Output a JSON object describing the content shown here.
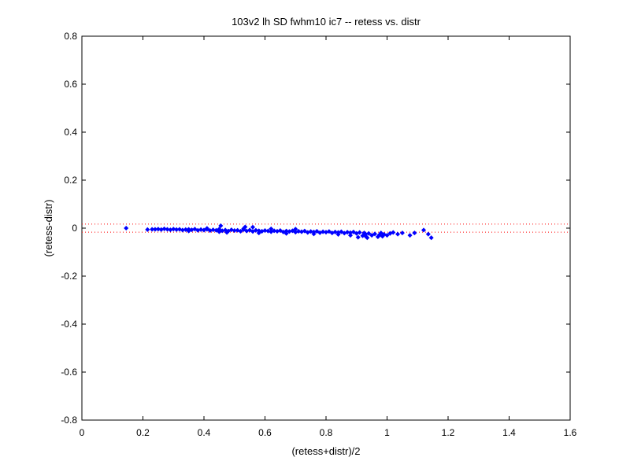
{
  "chart_data": {
    "type": "scatter",
    "title": "103v2 lh SD fwhm10 ic7 -- retess vs. distr",
    "xlabel": "(retess+distr)/2",
    "ylabel": "(retess-distr)",
    "xlim": [
      0,
      1.6
    ],
    "ylim": [
      -0.8,
      0.8
    ],
    "xticks": [
      0,
      0.2,
      0.4,
      0.6,
      0.8,
      1,
      1.2,
      1.4,
      1.6
    ],
    "yticks": [
      -0.8,
      -0.6,
      -0.4,
      -0.2,
      0,
      0.2,
      0.4,
      0.6,
      0.8
    ],
    "xtick_labels": [
      "0",
      "0.2",
      "0.4",
      "0.6",
      "0.8",
      "1",
      "1.2",
      "1.4",
      "1.6"
    ],
    "ytick_labels": [
      "-0.8",
      "-0.6",
      "-0.4",
      "-0.2",
      "0",
      "0.2",
      "0.4",
      "0.6",
      "0.8"
    ],
    "grid": false,
    "reference_lines": [
      {
        "y": 0.017,
        "style": "dotted",
        "color": "#ff0000"
      },
      {
        "y": -0.017,
        "style": "dotted",
        "color": "#ff0000"
      }
    ],
    "marker_color": "#0000ff",
    "series": [
      {
        "points": [
          [
            0.145,
            0.0
          ],
          [
            0.215,
            -0.006
          ],
          [
            0.23,
            -0.005
          ],
          [
            0.24,
            -0.005
          ],
          [
            0.25,
            -0.004
          ],
          [
            0.26,
            -0.006
          ],
          [
            0.27,
            -0.003
          ],
          [
            0.28,
            -0.005
          ],
          [
            0.29,
            -0.007
          ],
          [
            0.3,
            -0.004
          ],
          [
            0.31,
            -0.006
          ],
          [
            0.32,
            -0.005
          ],
          [
            0.33,
            -0.008
          ],
          [
            0.34,
            -0.006
          ],
          [
            0.35,
            -0.005
          ],
          [
            0.36,
            -0.007
          ],
          [
            0.37,
            -0.004
          ],
          [
            0.38,
            -0.009
          ],
          [
            0.39,
            -0.006
          ],
          [
            0.4,
            -0.008
          ],
          [
            0.41,
            -0.005
          ],
          [
            0.42,
            -0.01
          ],
          [
            0.43,
            -0.007
          ],
          [
            0.44,
            -0.009
          ],
          [
            0.45,
            -0.004
          ],
          [
            0.455,
            0.01
          ],
          [
            0.46,
            -0.011
          ],
          [
            0.47,
            -0.008
          ],
          [
            0.48,
            -0.012
          ],
          [
            0.49,
            -0.007
          ],
          [
            0.5,
            -0.01
          ],
          [
            0.51,
            -0.009
          ],
          [
            0.52,
            -0.013
          ],
          [
            0.53,
            -0.006
          ],
          [
            0.535,
            0.005
          ],
          [
            0.54,
            -0.012
          ],
          [
            0.55,
            -0.008
          ],
          [
            0.56,
            -0.014
          ],
          [
            0.57,
            -0.009
          ],
          [
            0.58,
            -0.011
          ],
          [
            0.59,
            -0.013
          ],
          [
            0.6,
            -0.01
          ],
          [
            0.61,
            -0.012
          ],
          [
            0.62,
            -0.015
          ],
          [
            0.63,
            -0.011
          ],
          [
            0.64,
            -0.013
          ],
          [
            0.65,
            -0.01
          ],
          [
            0.66,
            -0.016
          ],
          [
            0.67,
            -0.012
          ],
          [
            0.68,
            -0.014
          ],
          [
            0.69,
            -0.011
          ],
          [
            0.7,
            -0.017
          ],
          [
            0.71,
            -0.013
          ],
          [
            0.72,
            -0.015
          ],
          [
            0.73,
            -0.012
          ],
          [
            0.74,
            -0.018
          ],
          [
            0.75,
            -0.014
          ],
          [
            0.76,
            -0.016
          ],
          [
            0.77,
            -0.013
          ],
          [
            0.78,
            -0.019
          ],
          [
            0.79,
            -0.015
          ],
          [
            0.8,
            -0.017
          ],
          [
            0.81,
            -0.014
          ],
          [
            0.82,
            -0.02
          ],
          [
            0.83,
            -0.016
          ],
          [
            0.84,
            -0.018
          ],
          [
            0.85,
            -0.015
          ],
          [
            0.86,
            -0.021
          ],
          [
            0.87,
            -0.017
          ],
          [
            0.88,
            -0.019
          ],
          [
            0.89,
            -0.016
          ],
          [
            0.9,
            -0.022
          ],
          [
            0.905,
            -0.038
          ],
          [
            0.91,
            -0.018
          ],
          [
            0.92,
            -0.032
          ],
          [
            0.925,
            -0.02
          ],
          [
            0.93,
            -0.025
          ],
          [
            0.935,
            -0.04
          ],
          [
            0.94,
            -0.022
          ],
          [
            0.95,
            -0.03
          ],
          [
            0.96,
            -0.024
          ],
          [
            0.97,
            -0.036
          ],
          [
            0.975,
            -0.028
          ],
          [
            0.98,
            -0.02
          ],
          [
            0.985,
            -0.034
          ],
          [
            0.99,
            -0.026
          ],
          [
            1.0,
            -0.03
          ],
          [
            1.01,
            -0.022
          ],
          [
            1.02,
            -0.018
          ],
          [
            1.035,
            -0.025
          ],
          [
            1.05,
            -0.02
          ],
          [
            1.075,
            -0.03
          ],
          [
            1.09,
            -0.02
          ],
          [
            1.12,
            -0.008
          ],
          [
            1.135,
            -0.025
          ],
          [
            1.145,
            -0.04
          ],
          [
            0.475,
            -0.018
          ],
          [
            0.56,
            0.004
          ],
          [
            0.62,
            -0.003
          ],
          [
            0.7,
            -0.004
          ],
          [
            0.35,
            -0.012
          ],
          [
            0.45,
            -0.015
          ],
          [
            0.58,
            -0.02
          ],
          [
            0.67,
            -0.022
          ],
          [
            0.76,
            -0.024
          ],
          [
            0.84,
            -0.026
          ],
          [
            0.88,
            -0.03
          ],
          [
            0.93,
            -0.034
          ],
          [
            0.53,
            -0.002
          ],
          [
            0.41,
            -0.001
          ]
        ]
      }
    ]
  }
}
